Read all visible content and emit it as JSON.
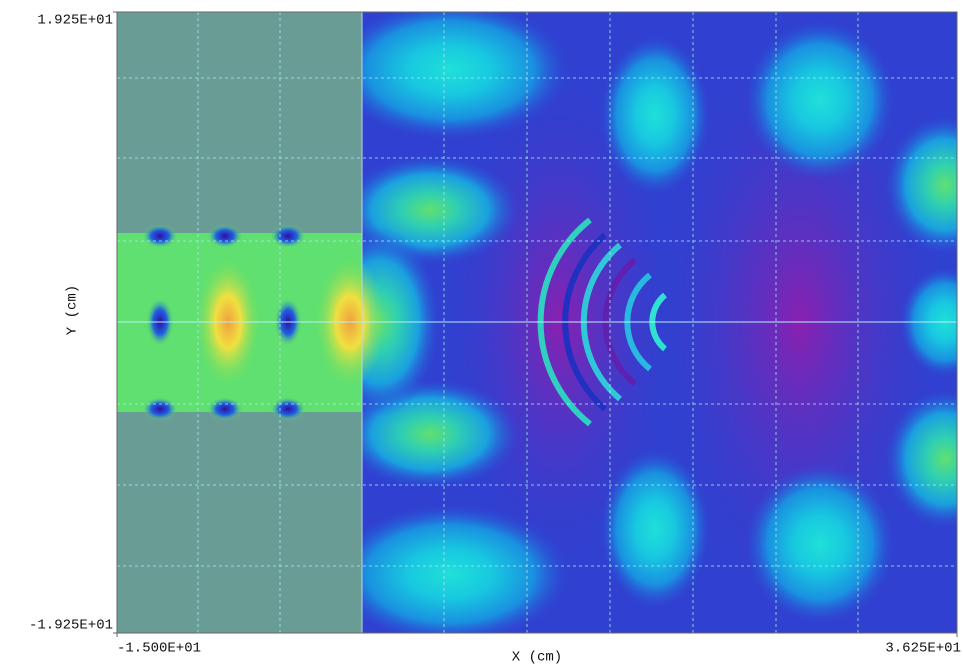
{
  "chart_data": {
    "type": "contour",
    "xlabel": "X (cm)",
    "ylabel": "Y (cm)",
    "xlim": [
      -15,
      36.25
    ],
    "ylim": [
      -19.25,
      19.25
    ],
    "xticks": [
      {
        "value": -15,
        "label": "-1.500E+01"
      },
      {
        "value": 36.25,
        "label": "3.625E+01"
      }
    ],
    "yticks": [
      {
        "value": -19.25,
        "label": "-1.925E+01"
      },
      {
        "value": 19.25,
        "label": "1.925E+01"
      }
    ]
  }
}
